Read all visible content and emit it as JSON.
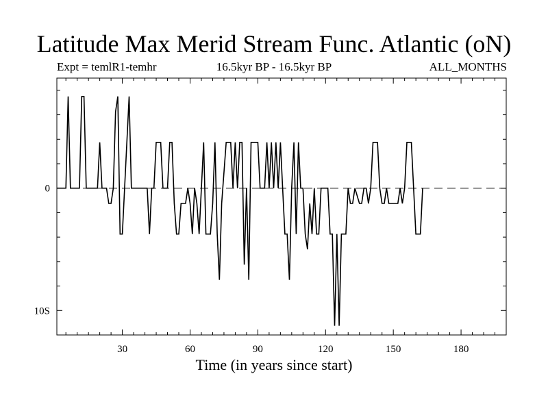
{
  "chart_data": {
    "type": "line",
    "title": "Latitude Max Merid Stream Func. Atlantic (oN)",
    "subtitle_left": "Expt = temlR1-temhr",
    "subtitle_center": "16.5kyr BP - 16.5kyr BP",
    "subtitle_right": "ALL_MONTHS",
    "xlabel": "Time (in years since start)",
    "ylabel": "",
    "xlim": [
      1,
      200
    ],
    "ylim": [
      -12,
      9
    ],
    "x_ticks": [
      30,
      60,
      90,
      120,
      150,
      180
    ],
    "y_tick_labels": [
      {
        "value": 0,
        "label": "0"
      },
      {
        "value": -10,
        "label": "10S"
      }
    ],
    "zero_line": "dashed",
    "series": [
      {
        "name": "Latitude Max Merid Stream Func.",
        "points": [
          [
            1,
            0
          ],
          [
            5,
            0
          ],
          [
            6,
            7.5
          ],
          [
            7,
            0
          ],
          [
            11,
            0
          ],
          [
            12,
            7.5
          ],
          [
            13,
            7.5
          ],
          [
            14,
            0
          ],
          [
            19,
            0
          ],
          [
            20,
            3.75
          ],
          [
            21,
            0
          ],
          [
            23,
            0
          ],
          [
            24,
            -1.25
          ],
          [
            25,
            -1.25
          ],
          [
            26,
            0
          ],
          [
            27,
            6.25
          ],
          [
            28,
            7.5
          ],
          [
            29,
            -3.75
          ],
          [
            30,
            -3.75
          ],
          [
            31,
            0
          ],
          [
            33,
            7.5
          ],
          [
            34,
            0
          ],
          [
            41,
            0
          ],
          [
            42,
            -3.75
          ],
          [
            43,
            0
          ],
          [
            44,
            0
          ],
          [
            45,
            3.75
          ],
          [
            47,
            3.75
          ],
          [
            48,
            0
          ],
          [
            50,
            0
          ],
          [
            51,
            3.75
          ],
          [
            52,
            3.75
          ],
          [
            53,
            -1.25
          ],
          [
            54,
            -3.75
          ],
          [
            55,
            -3.75
          ],
          [
            56,
            -1.25
          ],
          [
            58,
            -1.25
          ],
          [
            59,
            0
          ],
          [
            60,
            -1.25
          ],
          [
            61,
            -3.75
          ],
          [
            62,
            0
          ],
          [
            63,
            -1.25
          ],
          [
            64,
            -3.75
          ],
          [
            65,
            0
          ],
          [
            66,
            3.75
          ],
          [
            67,
            -3.75
          ],
          [
            69,
            -3.75
          ],
          [
            70,
            -1.25
          ],
          [
            71,
            3.75
          ],
          [
            72,
            -3.75
          ],
          [
            73,
            -7.5
          ],
          [
            74,
            -1.25
          ],
          [
            76,
            3.75
          ],
          [
            78,
            3.75
          ],
          [
            79,
            0
          ],
          [
            80,
            3.75
          ],
          [
            81,
            0
          ],
          [
            82,
            3.75
          ],
          [
            83,
            3.75
          ],
          [
            84,
            -6.25
          ],
          [
            85,
            0
          ],
          [
            86,
            -7.5
          ],
          [
            87,
            3.75
          ],
          [
            90,
            3.75
          ],
          [
            91,
            0
          ],
          [
            93,
            0
          ],
          [
            94,
            3.75
          ],
          [
            95,
            0
          ],
          [
            96,
            3.75
          ],
          [
            97,
            0
          ],
          [
            98,
            3.75
          ],
          [
            99,
            0
          ],
          [
            100,
            3.75
          ],
          [
            101,
            0
          ],
          [
            102,
            -3.75
          ],
          [
            103,
            -3.75
          ],
          [
            104,
            -7.5
          ],
          [
            105,
            0
          ],
          [
            106,
            3.75
          ],
          [
            107,
            -3.75
          ],
          [
            108,
            3.75
          ],
          [
            109,
            0
          ],
          [
            110,
            0
          ],
          [
            111,
            -3.75
          ],
          [
            112,
            -5
          ],
          [
            113,
            -1.25
          ],
          [
            114,
            -3.75
          ],
          [
            115,
            0
          ],
          [
            116,
            -3.75
          ],
          [
            117,
            -3.75
          ],
          [
            118,
            0
          ],
          [
            121,
            0
          ],
          [
            122,
            -3.75
          ],
          [
            123,
            -3.75
          ],
          [
            124,
            -11.25
          ],
          [
            125,
            -3.75
          ],
          [
            126,
            -11.25
          ],
          [
            127,
            -3.75
          ],
          [
            129,
            -3.75
          ],
          [
            130,
            0
          ],
          [
            131,
            -1.25
          ],
          [
            132,
            -1.25
          ],
          [
            133,
            0
          ],
          [
            135,
            -1.25
          ],
          [
            136,
            -1.25
          ],
          [
            137,
            0
          ],
          [
            138,
            0
          ],
          [
            139,
            -1.25
          ],
          [
            140,
            0
          ],
          [
            141,
            3.75
          ],
          [
            143,
            3.75
          ],
          [
            144,
            0
          ],
          [
            145,
            -1.25
          ],
          [
            146,
            -1.25
          ],
          [
            147,
            0
          ],
          [
            148,
            -1.25
          ],
          [
            152,
            -1.25
          ],
          [
            153,
            0
          ],
          [
            154,
            -1.25
          ],
          [
            155,
            0
          ],
          [
            156,
            3.75
          ],
          [
            158,
            3.75
          ],
          [
            159,
            0
          ],
          [
            160,
            -3.75
          ],
          [
            162,
            -3.75
          ],
          [
            163,
            0
          ]
        ]
      }
    ]
  }
}
